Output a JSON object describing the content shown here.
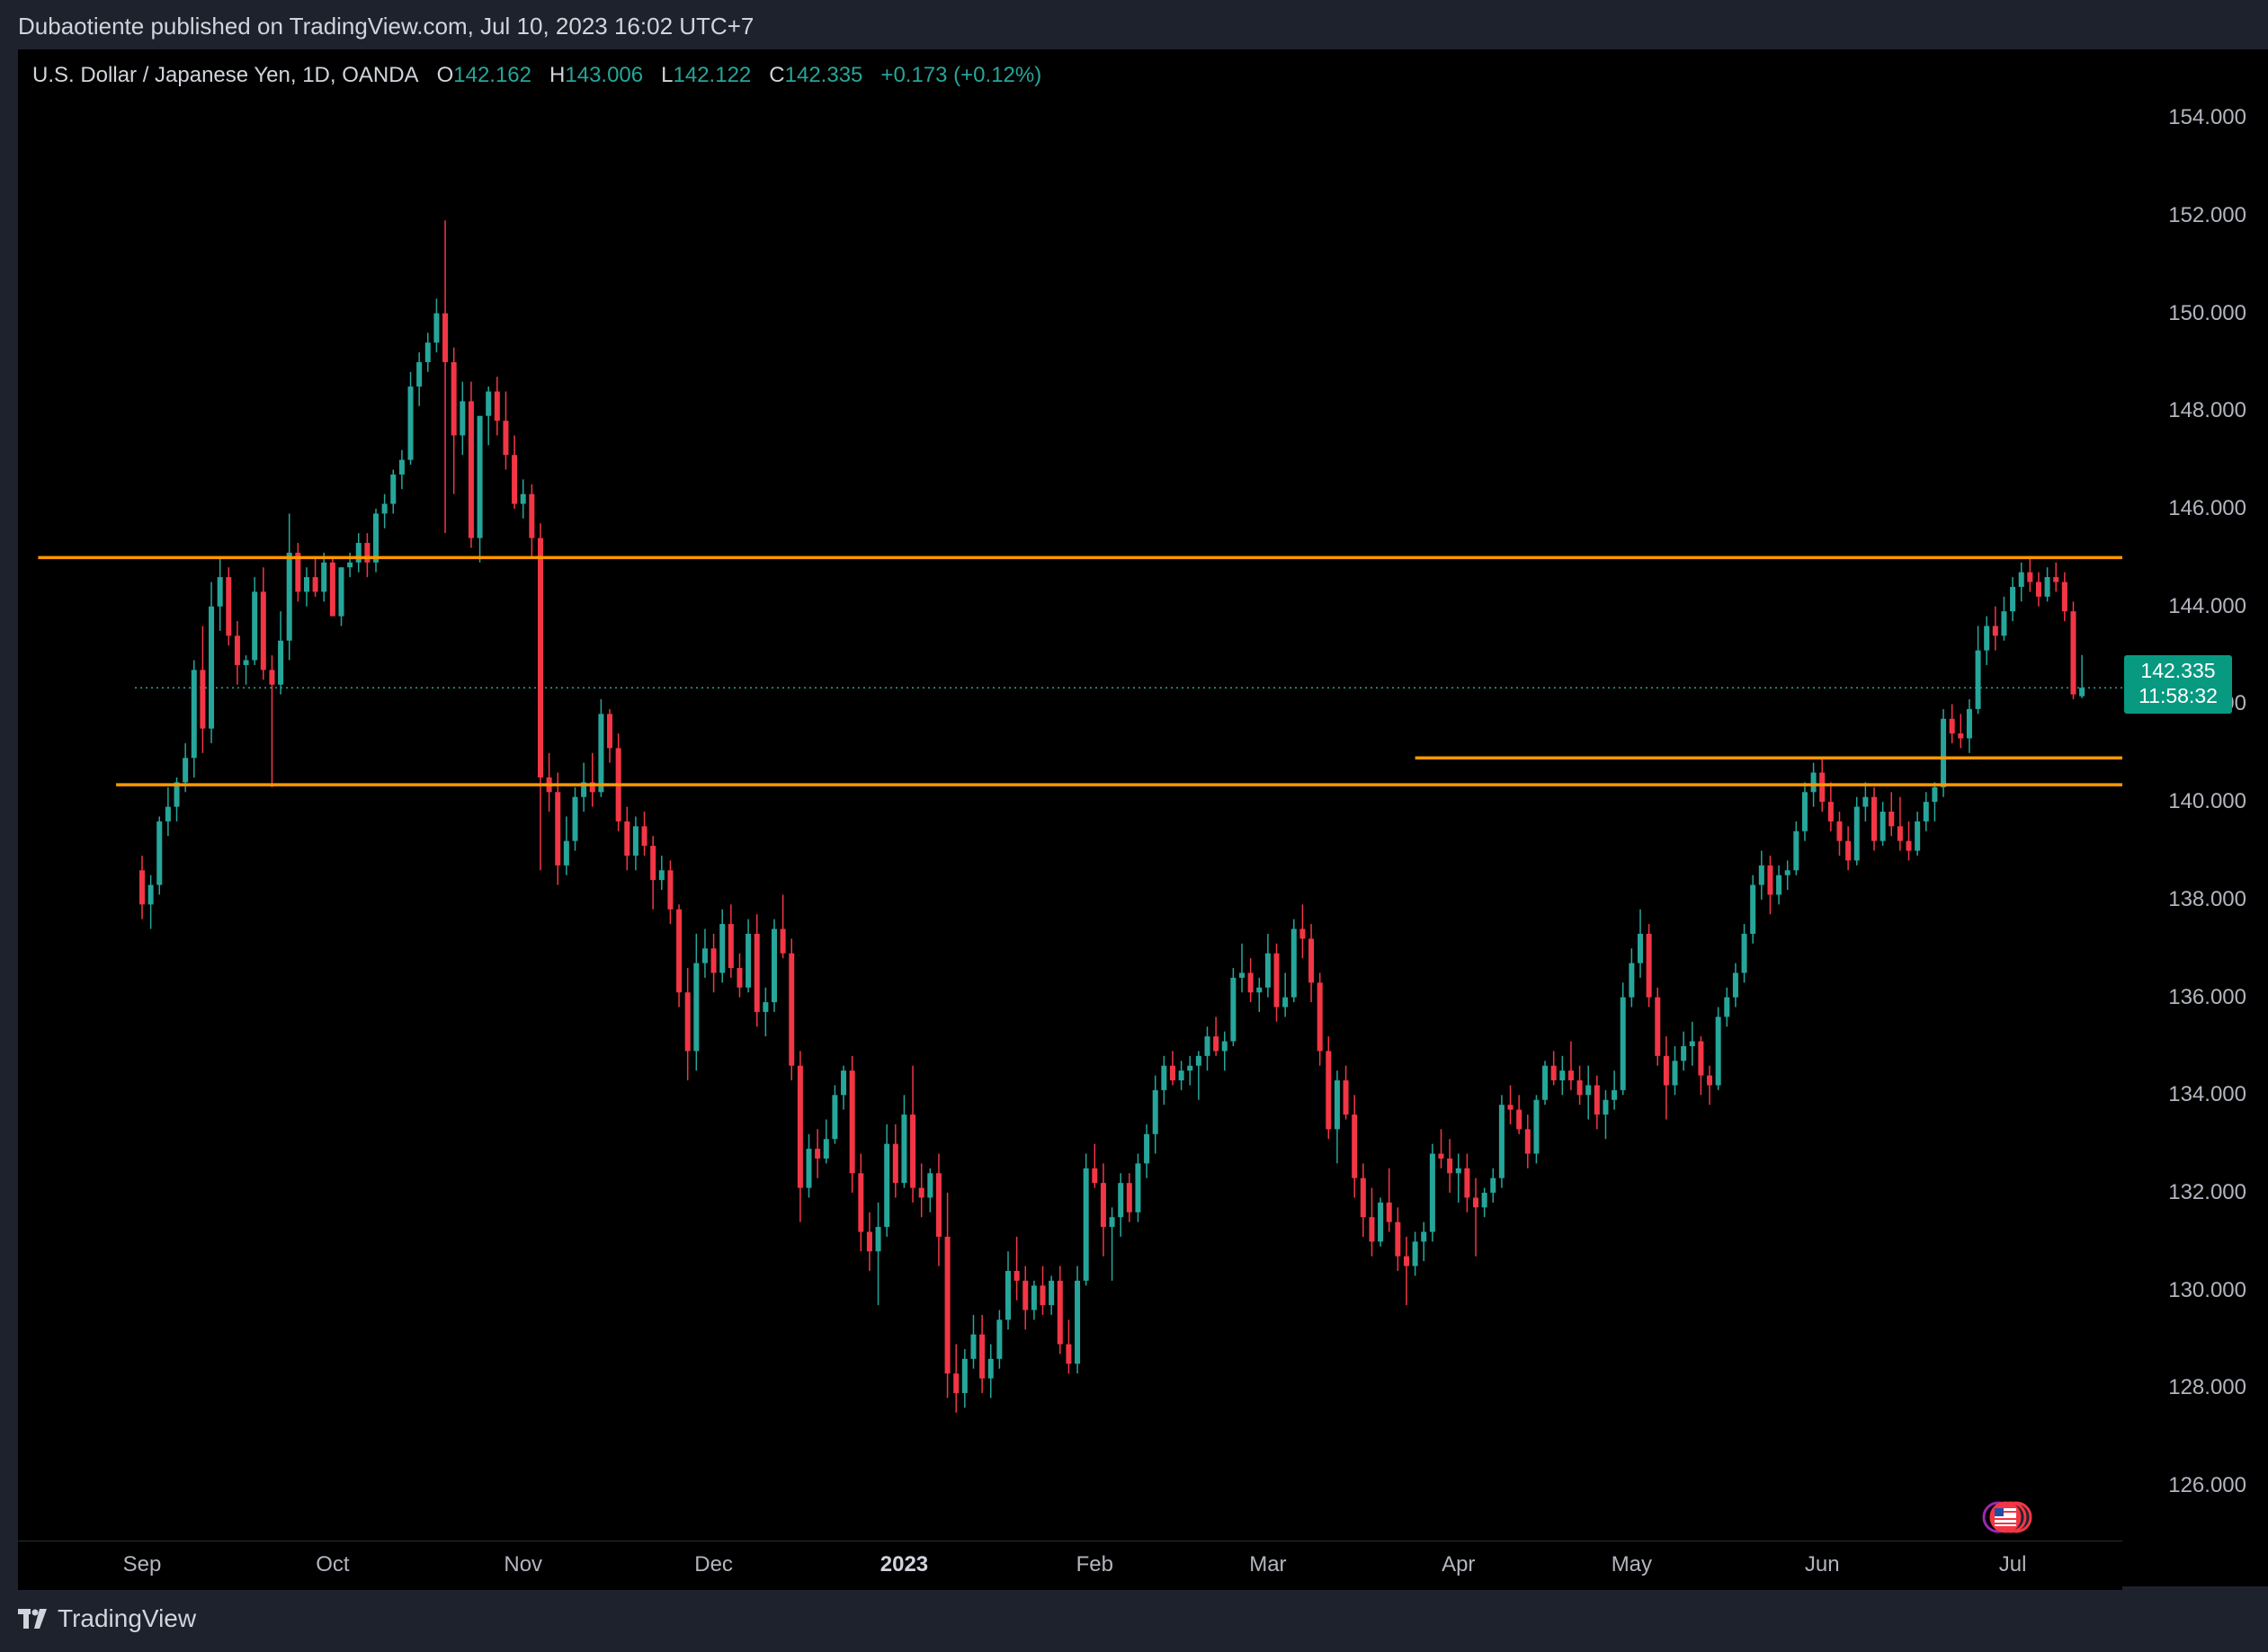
{
  "header": {
    "published_by": "Dubaotiente published on TradingView.com, Jul 10, 2023 16:02 UTC+7"
  },
  "symbol": {
    "name": "U.S. Dollar / Japanese Yen, 1D, OANDA",
    "open_label": "O",
    "open": "142.162",
    "high_label": "H",
    "high": "143.006",
    "low_label": "L",
    "low": "142.122",
    "close_label": "C",
    "close": "142.335",
    "change": "+0.173 (+0.12%)"
  },
  "last_price": {
    "price": "142.335",
    "countdown": "11:58:32"
  },
  "footer": {
    "brand": "TradingView"
  },
  "colors": {
    "up": "#26a69a",
    "down": "#f23645",
    "level": "#ff9800",
    "background": "#000000",
    "frame": "#1e222d",
    "text": "#d1d4dc"
  },
  "chart_data": {
    "type": "candlestick",
    "ylim": [
      124.9,
      155.4
    ],
    "y_ticks": [
      "154.000",
      "152.000",
      "150.000",
      "148.000",
      "146.000",
      "144.000",
      "142.000",
      "140.000",
      "138.000",
      "136.000",
      "134.000",
      "132.000",
      "130.000",
      "128.000",
      "126.000"
    ],
    "x_ticks": [
      {
        "label": "Sep",
        "index": 0,
        "bold": false
      },
      {
        "label": "Oct",
        "index": 22,
        "bold": false
      },
      {
        "label": "Nov",
        "index": 44,
        "bold": false
      },
      {
        "label": "Dec",
        "index": 66,
        "bold": false
      },
      {
        "label": "2023",
        "index": 88,
        "bold": true
      },
      {
        "label": "Feb",
        "index": 110,
        "bold": false
      },
      {
        "label": "Mar",
        "index": 130,
        "bold": false
      },
      {
        "label": "Apr",
        "index": 152,
        "bold": false
      },
      {
        "label": "May",
        "index": 172,
        "bold": false
      },
      {
        "label": "Jun",
        "index": 194,
        "bold": false
      },
      {
        "label": "Jul",
        "index": 216,
        "bold": false
      }
    ],
    "levels": [
      {
        "price": 145.0,
        "from_index": -12,
        "to_index": 237
      },
      {
        "price": 140.35,
        "from_index": -3,
        "to_index": 236
      },
      {
        "price": 140.9,
        "from_index": 147,
        "to_index": 236
      }
    ],
    "ohlc": [
      [
        138.6,
        138.9,
        137.6,
        137.9
      ],
      [
        137.9,
        138.5,
        137.4,
        138.3
      ],
      [
        138.3,
        139.7,
        138.1,
        139.6
      ],
      [
        139.6,
        140.3,
        139.3,
        139.9
      ],
      [
        139.9,
        140.5,
        139.6,
        140.4
      ],
      [
        140.4,
        141.2,
        140.2,
        140.9
      ],
      [
        140.9,
        142.9,
        140.5,
        142.7
      ],
      [
        142.7,
        143.6,
        141.0,
        141.5
      ],
      [
        141.5,
        144.5,
        141.2,
        144.0
      ],
      [
        144.0,
        145.0,
        143.5,
        144.6
      ],
      [
        144.6,
        144.8,
        143.2,
        143.4
      ],
      [
        143.4,
        143.7,
        142.4,
        142.8
      ],
      [
        142.8,
        143.0,
        142.4,
        142.9
      ],
      [
        142.9,
        144.6,
        142.8,
        144.3
      ],
      [
        144.3,
        144.8,
        142.5,
        142.7
      ],
      [
        142.7,
        143.0,
        140.3,
        142.4
      ],
      [
        142.4,
        143.9,
        142.2,
        143.3
      ],
      [
        143.3,
        145.9,
        142.9,
        145.1
      ],
      [
        145.1,
        145.3,
        144.1,
        144.3
      ],
      [
        144.3,
        144.8,
        144.0,
        144.6
      ],
      [
        144.6,
        145.0,
        144.2,
        144.3
      ],
      [
        144.3,
        145.1,
        144.1,
        144.9
      ],
      [
        144.9,
        145.0,
        143.8,
        143.8
      ],
      [
        143.8,
        144.8,
        143.6,
        144.8
      ],
      [
        144.8,
        145.1,
        144.6,
        144.9
      ],
      [
        144.9,
        145.5,
        144.7,
        145.3
      ],
      [
        145.3,
        145.5,
        144.6,
        144.9
      ],
      [
        144.9,
        146.0,
        144.7,
        145.9
      ],
      [
        145.9,
        146.3,
        145.6,
        146.1
      ],
      [
        146.1,
        146.8,
        145.9,
        146.7
      ],
      [
        146.7,
        147.2,
        146.4,
        147.0
      ],
      [
        147.0,
        148.8,
        146.9,
        148.5
      ],
      [
        148.5,
        149.2,
        148.1,
        149.0
      ],
      [
        149.0,
        149.6,
        148.8,
        149.4
      ],
      [
        149.4,
        150.3,
        149.2,
        150.0
      ],
      [
        150.0,
        151.9,
        145.5,
        149.0
      ],
      [
        149.0,
        149.3,
        146.3,
        147.5
      ],
      [
        147.5,
        148.6,
        147.1,
        148.2
      ],
      [
        148.2,
        148.6,
        145.2,
        145.4
      ],
      [
        145.4,
        147.9,
        144.9,
        147.9
      ],
      [
        147.9,
        148.5,
        147.3,
        148.4
      ],
      [
        148.4,
        148.7,
        147.5,
        147.8
      ],
      [
        147.8,
        148.4,
        146.8,
        147.1
      ],
      [
        147.1,
        147.5,
        146.0,
        146.1
      ],
      [
        146.1,
        146.6,
        145.8,
        146.3
      ],
      [
        146.3,
        146.5,
        145.0,
        145.4
      ],
      [
        145.4,
        145.7,
        138.6,
        140.5
      ],
      [
        140.5,
        141.0,
        139.8,
        140.2
      ],
      [
        140.2,
        140.6,
        138.3,
        138.7
      ],
      [
        138.7,
        139.7,
        138.5,
        139.2
      ],
      [
        139.2,
        140.3,
        139.0,
        140.1
      ],
      [
        140.1,
        140.8,
        139.8,
        140.4
      ],
      [
        140.4,
        141.0,
        139.9,
        140.2
      ],
      [
        140.2,
        142.1,
        140.1,
        141.8
      ],
      [
        141.8,
        141.9,
        140.8,
        141.1
      ],
      [
        141.1,
        141.4,
        139.4,
        139.6
      ],
      [
        139.6,
        139.9,
        138.6,
        138.9
      ],
      [
        138.9,
        139.7,
        138.6,
        139.5
      ],
      [
        139.5,
        139.8,
        138.9,
        139.1
      ],
      [
        139.1,
        139.3,
        137.8,
        138.4
      ],
      [
        138.4,
        138.9,
        138.2,
        138.6
      ],
      [
        138.6,
        138.8,
        137.5,
        137.8
      ],
      [
        137.8,
        137.9,
        135.8,
        136.1
      ],
      [
        136.1,
        136.6,
        134.3,
        134.9
      ],
      [
        134.9,
        137.3,
        134.5,
        136.7
      ],
      [
        136.7,
        137.4,
        136.4,
        137.0
      ],
      [
        137.0,
        137.3,
        136.1,
        136.5
      ],
      [
        136.5,
        137.8,
        136.3,
        137.5
      ],
      [
        137.5,
        137.9,
        136.4,
        136.6
      ],
      [
        136.6,
        136.9,
        136.0,
        136.2
      ],
      [
        136.2,
        137.6,
        136.1,
        137.3
      ],
      [
        137.3,
        137.7,
        135.4,
        135.7
      ],
      [
        135.7,
        136.2,
        135.2,
        135.9
      ],
      [
        135.9,
        137.6,
        135.7,
        137.4
      ],
      [
        137.4,
        138.1,
        136.8,
        136.9
      ],
      [
        136.9,
        137.2,
        134.3,
        134.6
      ],
      [
        134.6,
        134.9,
        131.4,
        132.1
      ],
      [
        132.1,
        133.2,
        131.9,
        132.9
      ],
      [
        132.9,
        133.3,
        132.3,
        132.7
      ],
      [
        132.7,
        133.5,
        132.6,
        133.1
      ],
      [
        133.1,
        134.2,
        133.0,
        134.0
      ],
      [
        134.0,
        134.6,
        133.7,
        134.5
      ],
      [
        134.5,
        134.8,
        132.0,
        132.4
      ],
      [
        132.4,
        132.8,
        130.8,
        131.2
      ],
      [
        131.2,
        131.6,
        130.4,
        130.8
      ],
      [
        130.8,
        131.8,
        129.7,
        131.3
      ],
      [
        131.3,
        133.4,
        131.1,
        133.0
      ],
      [
        133.0,
        133.4,
        131.9,
        132.2
      ],
      [
        132.2,
        134.0,
        132.1,
        133.6
      ],
      [
        133.6,
        134.6,
        131.8,
        132.1
      ],
      [
        132.1,
        132.6,
        131.5,
        131.9
      ],
      [
        131.9,
        132.5,
        131.6,
        132.4
      ],
      [
        132.4,
        132.8,
        130.5,
        131.1
      ],
      [
        131.1,
        132.0,
        127.8,
        128.3
      ],
      [
        128.3,
        128.9,
        127.5,
        127.9
      ],
      [
        127.9,
        128.8,
        127.6,
        128.6
      ],
      [
        128.6,
        129.5,
        128.4,
        129.1
      ],
      [
        129.1,
        129.5,
        127.9,
        128.2
      ],
      [
        128.2,
        128.9,
        127.8,
        128.6
      ],
      [
        128.6,
        129.6,
        128.4,
        129.4
      ],
      [
        129.4,
        130.8,
        129.2,
        130.4
      ],
      [
        130.4,
        131.1,
        129.8,
        130.2
      ],
      [
        130.2,
        130.5,
        129.2,
        129.6
      ],
      [
        129.6,
        130.2,
        129.4,
        130.1
      ],
      [
        130.1,
        130.5,
        129.5,
        129.7
      ],
      [
        129.7,
        130.3,
        129.5,
        130.2
      ],
      [
        130.2,
        130.5,
        128.7,
        128.9
      ],
      [
        128.9,
        129.4,
        128.3,
        128.5
      ],
      [
        128.5,
        130.5,
        128.3,
        130.2
      ],
      [
        130.2,
        132.8,
        130.1,
        132.5
      ],
      [
        132.5,
        133.0,
        132.1,
        132.2
      ],
      [
        132.2,
        132.6,
        130.7,
        131.3
      ],
      [
        131.3,
        131.7,
        130.2,
        131.5
      ],
      [
        131.5,
        132.4,
        131.1,
        132.2
      ],
      [
        132.2,
        132.4,
        131.4,
        131.6
      ],
      [
        131.6,
        132.8,
        131.4,
        132.6
      ],
      [
        132.6,
        133.4,
        132.3,
        133.2
      ],
      [
        133.2,
        134.4,
        132.8,
        134.1
      ],
      [
        134.1,
        134.8,
        133.8,
        134.6
      ],
      [
        134.6,
        134.9,
        134.2,
        134.3
      ],
      [
        134.3,
        134.7,
        134.1,
        134.5
      ],
      [
        134.5,
        134.8,
        134.2,
        134.6
      ],
      [
        134.6,
        134.9,
        133.9,
        134.8
      ],
      [
        134.8,
        135.4,
        134.5,
        135.2
      ],
      [
        135.2,
        135.6,
        134.8,
        134.9
      ],
      [
        134.9,
        135.3,
        134.5,
        135.1
      ],
      [
        135.1,
        136.6,
        135.0,
        136.4
      ],
      [
        136.4,
        137.1,
        136.1,
        136.5
      ],
      [
        136.5,
        136.8,
        135.9,
        136.1
      ],
      [
        136.1,
        136.4,
        135.7,
        136.2
      ],
      [
        136.2,
        137.3,
        136.0,
        136.9
      ],
      [
        136.9,
        137.1,
        135.5,
        135.8
      ],
      [
        135.8,
        136.5,
        135.6,
        136.0
      ],
      [
        136.0,
        137.6,
        135.9,
        137.4
      ],
      [
        137.4,
        137.9,
        136.8,
        137.2
      ],
      [
        137.2,
        137.5,
        135.9,
        136.3
      ],
      [
        136.3,
        136.5,
        134.6,
        134.9
      ],
      [
        134.9,
        135.2,
        133.1,
        133.3
      ],
      [
        133.3,
        134.5,
        132.6,
        134.3
      ],
      [
        134.3,
        134.6,
        133.5,
        133.6
      ],
      [
        133.6,
        134.0,
        131.9,
        132.3
      ],
      [
        132.3,
        132.6,
        131.1,
        131.5
      ],
      [
        131.5,
        132.1,
        130.7,
        131.0
      ],
      [
        131.0,
        131.9,
        130.9,
        131.8
      ],
      [
        131.8,
        132.5,
        131.2,
        131.4
      ],
      [
        131.4,
        131.7,
        130.4,
        130.7
      ],
      [
        130.7,
        131.1,
        129.7,
        130.5
      ],
      [
        130.5,
        131.2,
        130.3,
        131.0
      ],
      [
        131.0,
        131.4,
        130.6,
        131.2
      ],
      [
        131.2,
        133.0,
        131.0,
        132.8
      ],
      [
        132.8,
        133.3,
        132.5,
        132.7
      ],
      [
        132.7,
        133.1,
        132.0,
        132.4
      ],
      [
        132.4,
        132.8,
        131.8,
        132.5
      ],
      [
        132.5,
        132.8,
        131.6,
        131.9
      ],
      [
        131.9,
        132.3,
        130.7,
        131.7
      ],
      [
        131.7,
        132.1,
        131.5,
        132.0
      ],
      [
        132.0,
        132.5,
        131.8,
        132.3
      ],
      [
        132.3,
        134.0,
        132.1,
        133.8
      ],
      [
        133.8,
        134.2,
        133.4,
        133.7
      ],
      [
        133.7,
        134.0,
        133.2,
        133.3
      ],
      [
        133.3,
        133.6,
        132.5,
        132.8
      ],
      [
        132.8,
        134.0,
        132.6,
        133.9
      ],
      [
        133.9,
        134.7,
        133.8,
        134.6
      ],
      [
        134.6,
        134.9,
        134.2,
        134.3
      ],
      [
        134.3,
        134.8,
        134.0,
        134.5
      ],
      [
        134.5,
        135.1,
        134.1,
        134.3
      ],
      [
        134.3,
        134.6,
        133.8,
        134.0
      ],
      [
        134.0,
        134.6,
        133.5,
        134.2
      ],
      [
        134.2,
        134.4,
        133.3,
        133.6
      ],
      [
        133.6,
        134.1,
        133.1,
        133.9
      ],
      [
        133.9,
        134.5,
        133.7,
        134.1
      ],
      [
        134.1,
        136.3,
        134.0,
        136.0
      ],
      [
        136.0,
        137.0,
        135.8,
        136.7
      ],
      [
        136.7,
        137.8,
        136.4,
        137.3
      ],
      [
        137.3,
        137.5,
        135.8,
        136.0
      ],
      [
        136.0,
        136.2,
        134.6,
        134.8
      ],
      [
        134.8,
        135.2,
        133.5,
        134.2
      ],
      [
        134.2,
        135.0,
        134.0,
        134.7
      ],
      [
        134.7,
        135.3,
        134.5,
        135.0
      ],
      [
        135.0,
        135.5,
        134.6,
        135.1
      ],
      [
        135.1,
        135.2,
        134.0,
        134.4
      ],
      [
        134.4,
        134.6,
        133.8,
        134.2
      ],
      [
        134.2,
        135.8,
        134.1,
        135.6
      ],
      [
        135.6,
        136.2,
        135.4,
        136.0
      ],
      [
        136.0,
        136.7,
        135.8,
        136.5
      ],
      [
        136.5,
        137.5,
        136.3,
        137.3
      ],
      [
        137.3,
        138.5,
        137.1,
        138.3
      ],
      [
        138.3,
        139.0,
        138.0,
        138.7
      ],
      [
        138.7,
        138.9,
        137.7,
        138.1
      ],
      [
        138.1,
        138.7,
        137.9,
        138.5
      ],
      [
        138.5,
        138.8,
        138.2,
        138.6
      ],
      [
        138.6,
        139.6,
        138.5,
        139.4
      ],
      [
        139.4,
        140.4,
        139.2,
        140.2
      ],
      [
        140.2,
        140.8,
        139.9,
        140.6
      ],
      [
        140.6,
        140.9,
        139.8,
        140.0
      ],
      [
        140.0,
        140.4,
        139.4,
        139.6
      ],
      [
        139.6,
        139.8,
        138.9,
        139.2
      ],
      [
        139.2,
        139.5,
        138.6,
        138.8
      ],
      [
        138.8,
        140.1,
        138.7,
        139.9
      ],
      [
        139.9,
        140.4,
        139.6,
        140.1
      ],
      [
        140.1,
        140.3,
        139.0,
        139.2
      ],
      [
        139.2,
        140.0,
        139.1,
        139.8
      ],
      [
        139.8,
        140.2,
        139.3,
        139.5
      ],
      [
        139.5,
        140.1,
        139.0,
        139.2
      ],
      [
        139.2,
        139.6,
        138.8,
        139.0
      ],
      [
        139.0,
        139.8,
        138.9,
        139.6
      ],
      [
        139.6,
        140.2,
        139.4,
        140.0
      ],
      [
        140.0,
        140.4,
        139.6,
        140.3
      ],
      [
        140.3,
        141.9,
        140.1,
        141.7
      ],
      [
        141.7,
        142.0,
        141.2,
        141.4
      ],
      [
        141.4,
        141.8,
        141.1,
        141.3
      ],
      [
        141.3,
        142.1,
        141.0,
        141.9
      ],
      [
        141.9,
        143.6,
        141.8,
        143.1
      ],
      [
        143.1,
        143.8,
        142.8,
        143.6
      ],
      [
        143.6,
        144.0,
        143.1,
        143.4
      ],
      [
        143.4,
        144.2,
        143.3,
        143.9
      ],
      [
        143.9,
        144.6,
        143.7,
        144.4
      ],
      [
        144.4,
        144.9,
        144.1,
        144.7
      ],
      [
        144.7,
        145.0,
        144.3,
        144.5
      ],
      [
        144.5,
        144.7,
        144.0,
        144.2
      ],
      [
        144.2,
        144.8,
        144.1,
        144.6
      ],
      [
        144.6,
        144.9,
        144.3,
        144.5
      ],
      [
        144.5,
        144.7,
        143.7,
        143.9
      ],
      [
        143.9,
        144.1,
        142.1,
        142.2
      ],
      [
        142.162,
        143.006,
        142.122,
        142.335
      ]
    ]
  }
}
